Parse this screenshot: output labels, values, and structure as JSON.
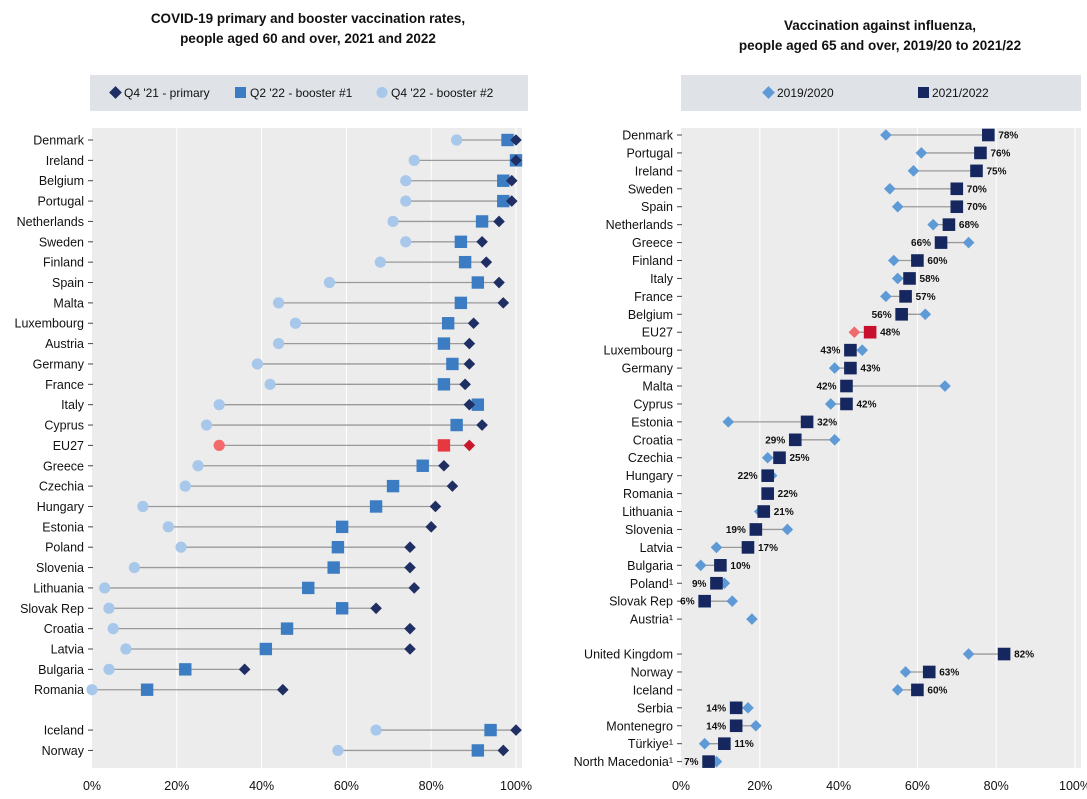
{
  "chart_data": [
    {
      "type": "dot-plot",
      "title": "COVID-19 primary and booster vaccination rates,",
      "subtitle": "people aged 60 and over, 2021 and 2022",
      "xlim": [
        0,
        100
      ],
      "x_ticks": [
        "0%",
        "20%",
        "40%",
        "60%",
        "80%",
        "100%"
      ],
      "legend_position": "top",
      "colors": {
        "primary": "#1f2f63",
        "booster1": "#3c7cc2",
        "booster2": "#a7c8ea",
        "highlight_primary": "#c8192c",
        "highlight_booster1": "#e8383f",
        "highlight_booster2": "#f26a6a",
        "connector": "#9a9a9a",
        "panel": "#ececec",
        "legend_panel": "#dfe3e8"
      },
      "highlight": "EU27",
      "series": [
        {
          "name": "Q4 '21 - primary",
          "marker": "diamond"
        },
        {
          "name": "Q2 '22 - booster #1",
          "marker": "square"
        },
        {
          "name": "Q4 '22 - booster #2",
          "marker": "circle"
        }
      ],
      "groups": [
        [
          {
            "c": "Denmark",
            "v": [
              100,
              98,
              86
            ]
          },
          {
            "c": "Ireland",
            "v": [
              100,
              100,
              76
            ]
          },
          {
            "c": "Belgium",
            "v": [
              99,
              97,
              74
            ]
          },
          {
            "c": "Portugal",
            "v": [
              99,
              97,
              74
            ]
          },
          {
            "c": "Netherlands",
            "v": [
              96,
              92,
              71
            ]
          },
          {
            "c": "Sweden",
            "v": [
              92,
              87,
              74
            ]
          },
          {
            "c": "Finland",
            "v": [
              93,
              88,
              68
            ]
          },
          {
            "c": "Spain",
            "v": [
              96,
              91,
              56
            ]
          },
          {
            "c": "Malta",
            "v": [
              97,
              87,
              44
            ]
          },
          {
            "c": "Luxembourg",
            "v": [
              90,
              84,
              48
            ]
          },
          {
            "c": "Austria",
            "v": [
              89,
              83,
              44
            ]
          },
          {
            "c": "Germany",
            "v": [
              89,
              85,
              39
            ]
          },
          {
            "c": "France",
            "v": [
              88,
              83,
              42
            ]
          },
          {
            "c": "Italy",
            "v": [
              89,
              91,
              30
            ]
          },
          {
            "c": "Cyprus",
            "v": [
              92,
              86,
              27
            ]
          },
          {
            "c": "EU27",
            "v": [
              89,
              83,
              30
            ]
          },
          {
            "c": "Greece",
            "v": [
              83,
              78,
              25
            ]
          },
          {
            "c": "Czechia",
            "v": [
              85,
              71,
              22
            ]
          },
          {
            "c": "Hungary",
            "v": [
              81,
              67,
              12
            ]
          },
          {
            "c": "Estonia",
            "v": [
              80,
              59,
              18
            ]
          },
          {
            "c": "Poland",
            "v": [
              75,
              58,
              21
            ]
          },
          {
            "c": "Slovenia",
            "v": [
              75,
              57,
              10
            ]
          },
          {
            "c": "Lithuania",
            "v": [
              76,
              51,
              3
            ]
          },
          {
            "c": "Slovak Rep",
            "v": [
              67,
              59,
              4
            ]
          },
          {
            "c": "Croatia",
            "v": [
              75,
              46,
              5
            ]
          },
          {
            "c": "Latvia",
            "v": [
              75,
              41,
              8
            ]
          },
          {
            "c": "Bulgaria",
            "v": [
              36,
              22,
              4
            ]
          },
          {
            "c": "Romania",
            "v": [
              45,
              13,
              0
            ]
          }
        ],
        [
          {
            "c": "Iceland",
            "v": [
              100,
              94,
              67
            ]
          },
          {
            "c": "Norway",
            "v": [
              97,
              91,
              58
            ]
          }
        ]
      ]
    },
    {
      "type": "dot-plot",
      "title": "Vaccination against influenza,",
      "subtitle": "people aged 65 and over, 2019/20 to 2021/22",
      "xlim": [
        0,
        100
      ],
      "x_ticks": [
        "0%",
        "20%",
        "40%",
        "60%",
        "80%",
        "100%"
      ],
      "legend_position": "top",
      "colors": {
        "y2019": "#5d9ad6",
        "y2021": "#15275e",
        "highlight_2019": "#ef6b6b",
        "highlight_2021": "#c8102e",
        "connector": "#9a9a9a",
        "panel": "#ececec",
        "legend_panel": "#dfe3e8"
      },
      "highlight": "EU27",
      "series": [
        {
          "name": "2019/2020",
          "marker": "diamond"
        },
        {
          "name": "2021/2022",
          "marker": "square"
        }
      ],
      "groups": [
        [
          {
            "c": "Denmark",
            "a": 52,
            "b": 78,
            "lab": "78%"
          },
          {
            "c": "Portugal",
            "a": 61,
            "b": 76,
            "lab": "76%"
          },
          {
            "c": "Ireland",
            "a": 59,
            "b": 75,
            "lab": "75%"
          },
          {
            "c": "Sweden",
            "a": 53,
            "b": 70,
            "lab": "70%"
          },
          {
            "c": "Spain",
            "a": 55,
            "b": 70,
            "lab": "70%"
          },
          {
            "c": "Netherlands",
            "a": 64,
            "b": 68,
            "lab": "68%"
          },
          {
            "c": "Greece",
            "a": 73,
            "b": 66,
            "lab": "66%"
          },
          {
            "c": "Finland",
            "a": 54,
            "b": 60,
            "lab": "60%"
          },
          {
            "c": "Italy",
            "a": 55,
            "b": 58,
            "lab": "58%"
          },
          {
            "c": "France",
            "a": 52,
            "b": 57,
            "lab": "57%"
          },
          {
            "c": "Belgium",
            "a": 62,
            "b": 56,
            "lab": "56%"
          },
          {
            "c": "EU27",
            "a": 44,
            "b": 48,
            "lab": "48%"
          },
          {
            "c": "Luxembourg",
            "a": 46,
            "b": 43,
            "lab": "43%"
          },
          {
            "c": "Germany",
            "a": 39,
            "b": 43,
            "lab": "43%"
          },
          {
            "c": "Malta",
            "a": 67,
            "b": 42,
            "lab": "42%"
          },
          {
            "c": "Cyprus",
            "a": 38,
            "b": 42,
            "lab": "42%"
          },
          {
            "c": "Estonia",
            "a": 12,
            "b": 32,
            "lab": "32%"
          },
          {
            "c": "Croatia",
            "a": 39,
            "b": 29,
            "lab": "29%"
          },
          {
            "c": "Czechia",
            "a": 22,
            "b": 25,
            "lab": "25%"
          },
          {
            "c": "Hungary",
            "a": 23,
            "b": 22,
            "lab": "22%"
          },
          {
            "c": "Romania",
            "a": 22,
            "b": 22,
            "lab": "22%"
          },
          {
            "c": "Lithuania",
            "a": 20,
            "b": 21,
            "lab": "21%"
          },
          {
            "c": "Slovenia",
            "a": 27,
            "b": 19,
            "lab": "19%"
          },
          {
            "c": "Latvia",
            "a": 9,
            "b": 17,
            "lab": "17%"
          },
          {
            "c": "Bulgaria",
            "a": 5,
            "b": 10,
            "lab": "10%"
          },
          {
            "c": "Poland¹",
            "a": 11,
            "b": 9,
            "lab": "9%"
          },
          {
            "c": "Slovak Rep",
            "a": 13,
            "b": 6,
            "lab": "6%"
          },
          {
            "c": "Austria¹",
            "a": 18,
            "b": null,
            "lab": ""
          }
        ],
        [
          {
            "c": "United Kingdom",
            "a": 73,
            "b": 82,
            "lab": "82%"
          },
          {
            "c": "Norway",
            "a": 57,
            "b": 63,
            "lab": "63%"
          },
          {
            "c": "Iceland",
            "a": 55,
            "b": 60,
            "lab": "60%"
          },
          {
            "c": "Serbia",
            "a": 17,
            "b": 14,
            "lab": "14%"
          },
          {
            "c": "Montenegro",
            "a": 19,
            "b": 14,
            "lab": "14%"
          },
          {
            "c": "Türkiye¹",
            "a": 6,
            "b": 11,
            "lab": "11%"
          },
          {
            "c": "North Macedonia¹",
            "a": 9,
            "b": 7,
            "lab": "7%"
          }
        ]
      ]
    }
  ]
}
